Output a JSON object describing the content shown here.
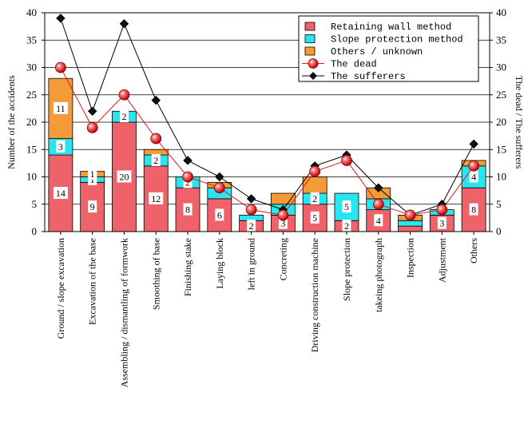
{
  "chart_data": {
    "type": "bar",
    "stacked": true,
    "categories": [
      "Ground / slope excavation",
      "Excavation of the base",
      "Assembling / dismantling of formwork",
      "Smoothing of base",
      "Finishing stake",
      "Laying block",
      "left in ground",
      "Concreting",
      "Driving construction machine",
      "Slope protection",
      "takeing photograph",
      "Inspection",
      "Adjustment",
      "Others"
    ],
    "series": [
      {
        "name": "Retaining wall method",
        "color": "#f0626a",
        "values": [
          14,
          9,
          20,
          12,
          8,
          6,
          2,
          3,
          5,
          2,
          4,
          1,
          3,
          8
        ],
        "labels": [
          "14",
          "9",
          "20",
          "12",
          "8",
          "6",
          "2",
          "3",
          "5",
          "2",
          "4",
          "",
          "3",
          "8"
        ]
      },
      {
        "name": "Slope protection method",
        "color": "#27e6ef",
        "values": [
          3,
          1,
          2,
          2,
          2,
          2,
          1,
          2,
          2,
          5,
          2,
          1,
          1,
          4
        ],
        "labels": [
          "3",
          "1",
          "2",
          "2",
          "2",
          "",
          "",
          "",
          "2",
          "5",
          "",
          "",
          "",
          "4"
        ]
      },
      {
        "name": "Others / unknown",
        "color": "#f59a38",
        "values": [
          11,
          1,
          0,
          1,
          0,
          1,
          0,
          2,
          3,
          0,
          2,
          1,
          0,
          1
        ],
        "labels": [
          "11",
          "1",
          "",
          "",
          "",
          "",
          "",
          "",
          "",
          "",
          "",
          "",
          "",
          ""
        ]
      }
    ],
    "lines": [
      {
        "name": "The dead",
        "color": "#e0181e",
        "marker": "sphere",
        "values": [
          30,
          19,
          25,
          17,
          10,
          8,
          4,
          3,
          11,
          13,
          5,
          3,
          4,
          12
        ]
      },
      {
        "name": "The sufferers",
        "color": "#000000",
        "marker": "diamond",
        "values": [
          39,
          22,
          38,
          24,
          13,
          10,
          6,
          4,
          12,
          14,
          8,
          3,
          5,
          16
        ]
      }
    ],
    "ylabel": "Number of the accidents",
    "y2label": "The dead / The sufferers",
    "ylim": [
      0,
      40
    ],
    "y2lim": [
      0,
      40
    ],
    "yticks": [
      "0",
      "5",
      "10",
      "15",
      "20",
      "25",
      "30",
      "35",
      "40"
    ],
    "grid": true,
    "legend_position": "top-right"
  }
}
